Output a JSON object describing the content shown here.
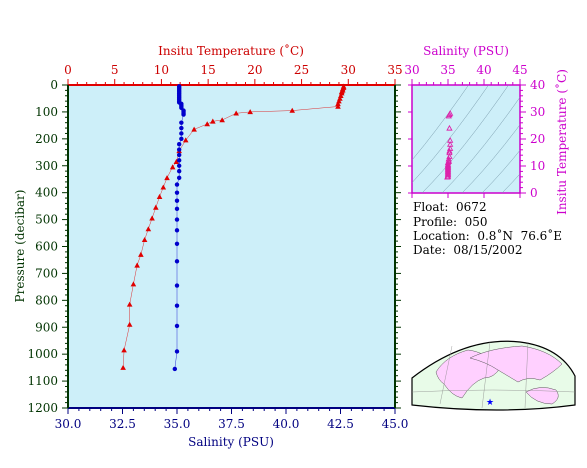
{
  "chart_data": [
    {
      "type": "line",
      "id": "profile",
      "top_axis": {
        "label": "Insitu Temperature (˚C)",
        "range": [
          0,
          35
        ],
        "ticks": [
          0,
          5,
          10,
          15,
          20,
          25,
          30,
          35
        ],
        "color": "#cc0000"
      },
      "bottom_axis": {
        "label": "Salinity (PSU)",
        "range": [
          30.0,
          45.0
        ],
        "ticks": [
          "30.0",
          "32.5",
          "35.0",
          "37.5",
          "40.0",
          "42.5",
          "45.0"
        ],
        "color": "#000080"
      },
      "y_axis": {
        "label": "Pressure (decibar)",
        "range": [
          0,
          1200
        ],
        "inverted": true,
        "ticks": [
          0,
          100,
          200,
          300,
          400,
          500,
          600,
          700,
          800,
          900,
          1000,
          1100,
          1200
        ],
        "color": "#003300"
      },
      "background": "#cdeff9",
      "series": [
        {
          "variable": "temperature",
          "axis": "top",
          "color": "#e00000",
          "marker": "triangle",
          "points": [
            [
              29.5,
              5
            ],
            [
              29.5,
              10
            ],
            [
              29.4,
              15
            ],
            [
              29.4,
              20
            ],
            [
              29.3,
              25
            ],
            [
              29.3,
              30
            ],
            [
              29.2,
              40
            ],
            [
              29.1,
              50
            ],
            [
              29.0,
              60
            ],
            [
              28.9,
              70
            ],
            [
              28.9,
              80
            ],
            [
              24.0,
              95
            ],
            [
              19.5,
              100
            ],
            [
              18.0,
              105
            ],
            [
              16.5,
              130
            ],
            [
              15.5,
              135
            ],
            [
              14.9,
              145
            ],
            [
              13.5,
              165
            ],
            [
              12.6,
              205
            ],
            [
              11.9,
              245
            ],
            [
              11.6,
              285
            ],
            [
              11.2,
              305
            ],
            [
              10.6,
              345
            ],
            [
              10.2,
              380
            ],
            [
              9.8,
              415
            ],
            [
              9.4,
              455
            ],
            [
              9.0,
              495
            ],
            [
              8.6,
              535
            ],
            [
              8.2,
              575
            ],
            [
              7.8,
              630
            ],
            [
              7.4,
              670
            ],
            [
              7.0,
              740
            ],
            [
              6.6,
              815
            ],
            [
              6.6,
              890
            ],
            [
              6.0,
              985
            ],
            [
              5.9,
              1050
            ]
          ]
        },
        {
          "variable": "salinity",
          "axis": "bottom",
          "color": "#0000cc",
          "marker": "circle",
          "points": [
            [
              35.1,
              5
            ],
            [
              35.1,
              10
            ],
            [
              35.1,
              15
            ],
            [
              35.1,
              20
            ],
            [
              35.1,
              25
            ],
            [
              35.1,
              30
            ],
            [
              35.1,
              35
            ],
            [
              35.1,
              40
            ],
            [
              35.1,
              45
            ],
            [
              35.1,
              50
            ],
            [
              35.1,
              55
            ],
            [
              35.1,
              60
            ],
            [
              35.1,
              65
            ],
            [
              35.2,
              70
            ],
            [
              35.2,
              75
            ],
            [
              35.2,
              80
            ],
            [
              35.2,
              85
            ],
            [
              35.3,
              95
            ],
            [
              35.3,
              100
            ],
            [
              35.3,
              105
            ],
            [
              35.3,
              110
            ],
            [
              35.2,
              140
            ],
            [
              35.2,
              160
            ],
            [
              35.2,
              180
            ],
            [
              35.2,
              200
            ],
            [
              35.1,
              220
            ],
            [
              35.1,
              240
            ],
            [
              35.1,
              260
            ],
            [
              35.1,
              280
            ],
            [
              35.1,
              300
            ],
            [
              35.1,
              320
            ],
            [
              35.1,
              345
            ],
            [
              35.0,
              370
            ],
            [
              35.0,
              400
            ],
            [
              35.0,
              430
            ],
            [
              35.0,
              460
            ],
            [
              35.0,
              500
            ],
            [
              35.0,
              540
            ],
            [
              35.0,
              590
            ],
            [
              35.0,
              655
            ],
            [
              35.0,
              745
            ],
            [
              35.0,
              820
            ],
            [
              35.0,
              895
            ],
            [
              35.0,
              990
            ],
            [
              34.9,
              1055
            ]
          ]
        }
      ]
    },
    {
      "type": "scatter",
      "id": "ts-diagram",
      "x_axis": {
        "label": "Salinity (PSU)",
        "range": [
          30,
          45
        ],
        "ticks": [
          30,
          35,
          40,
          45
        ],
        "color": "#cc00cc"
      },
      "y_axis": {
        "label": "Insitu Temperature (˚C)",
        "range": [
          0,
          40
        ],
        "ticks": [
          0,
          10,
          20,
          30,
          40
        ],
        "color": "#cc00cc"
      },
      "background": "#cdeff9",
      "marker": "triangle",
      "marker_color": "#dd22aa",
      "points": [
        [
          35.3,
          29.5
        ],
        [
          35.2,
          29.0
        ],
        [
          35.1,
          28.5
        ],
        [
          35.2,
          24.0
        ],
        [
          35.3,
          19.5
        ],
        [
          35.3,
          18.0
        ],
        [
          35.3,
          16.5
        ],
        [
          35.2,
          15.5
        ],
        [
          35.2,
          14.9
        ],
        [
          35.2,
          13.5
        ],
        [
          35.1,
          12.6
        ],
        [
          35.1,
          11.9
        ],
        [
          35.1,
          11.6
        ],
        [
          35.0,
          11.2
        ],
        [
          35.0,
          10.6
        ],
        [
          35.0,
          10.2
        ],
        [
          35.0,
          9.8
        ],
        [
          35.0,
          9.4
        ],
        [
          35.0,
          9.0
        ],
        [
          35.0,
          8.6
        ],
        [
          35.0,
          8.2
        ],
        [
          35.0,
          7.8
        ],
        [
          35.0,
          7.4
        ],
        [
          35.0,
          7.0
        ],
        [
          35.0,
          6.6
        ],
        [
          35.0,
          6.0
        ],
        [
          34.9,
          5.9
        ]
      ]
    }
  ],
  "info": {
    "float": "Float:  0672",
    "profile": "Profile:  050",
    "location": "Location:  0.8˚N  76.6˚E",
    "date": "Date:  08/15/2002"
  },
  "map": {
    "land_color": "#ffd0ff",
    "ocean_color": "#e8fbe8",
    "marker_color": "#0000ff"
  }
}
